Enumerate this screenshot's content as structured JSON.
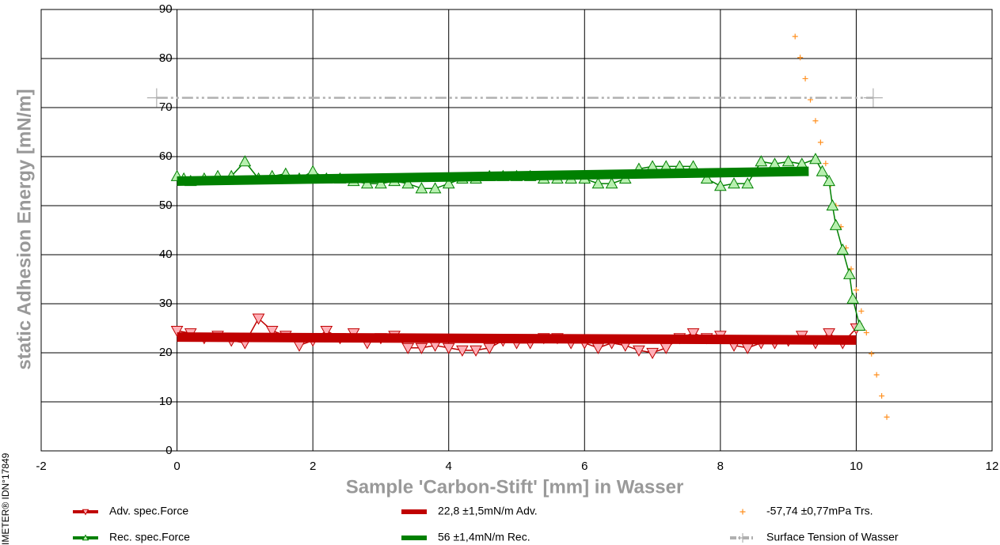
{
  "chart_data": {
    "type": "scatter",
    "xlabel": "Sample 'Carbon-Stift' [mm] in Wasser",
    "ylabel": "static Adhesion Energy [mN/m]",
    "watermark": "IMETER® IDN°17849",
    "xlim": [
      -2,
      12
    ],
    "xticks": [
      -2,
      0,
      2,
      4,
      6,
      8,
      10,
      12
    ],
    "ylim": [
      0,
      90
    ],
    "yticks": [
      0,
      10,
      20,
      30,
      40,
      50,
      60,
      70,
      80,
      90
    ],
    "grid": true,
    "series": [
      {
        "name": "Adv. spec.Force",
        "color": "#c00000",
        "marker": "triangle-down",
        "x": [
          0,
          0.2,
          0.4,
          0.6,
          0.8,
          1.0,
          1.2,
          1.4,
          1.6,
          1.8,
          2.0,
          2.2,
          2.4,
          2.6,
          2.8,
          3.0,
          3.2,
          3.4,
          3.6,
          3.8,
          4.0,
          4.2,
          4.4,
          4.6,
          4.8,
          5.0,
          5.2,
          5.4,
          5.6,
          5.8,
          6.0,
          6.2,
          6.4,
          6.6,
          6.8,
          7.0,
          7.2,
          7.4,
          7.6,
          7.8,
          8.0,
          8.2,
          8.4,
          8.6,
          8.8,
          9.0,
          9.2,
          9.4,
          9.6,
          9.8,
          10.0
        ],
        "values": [
          24.5,
          24,
          23,
          23.5,
          22.5,
          22,
          27,
          24.5,
          23.5,
          21.5,
          22.5,
          24.5,
          23,
          24,
          22,
          23,
          23.5,
          21,
          21,
          21.5,
          21,
          20.5,
          20.5,
          21,
          22.5,
          22,
          22,
          23,
          23,
          22,
          22,
          21,
          22,
          21.5,
          20.5,
          20,
          21,
          23,
          24,
          23,
          23.5,
          21.5,
          21,
          22,
          22,
          22.5,
          23.5,
          22,
          24,
          22,
          25
        ]
      },
      {
        "name": "22,8 ±1,5mN/m Adv.",
        "color": "#c00000",
        "marker": "none",
        "x": [
          0,
          10
        ],
        "values": [
          23.2,
          22.6
        ]
      },
      {
        "name": "-57,74 ±0,77mPa Trs.",
        "color": "#ff9020",
        "marker": "plus",
        "x": [
          9.1,
          9.175,
          9.25,
          9.325,
          9.4,
          9.475,
          9.55,
          9.625,
          9.7,
          9.775,
          9.85,
          9.925,
          10.0,
          10.075,
          10.15,
          10.225,
          10.3,
          10.375,
          10.45
        ],
        "values": [
          84.5,
          80.2,
          75.9,
          71.6,
          67.3,
          62.9,
          58.6,
          54.3,
          50.0,
          45.7,
          41.4,
          37.1,
          32.8,
          28.5,
          24.1,
          19.8,
          15.5,
          11.2,
          6.9
        ]
      },
      {
        "name": "Rec. spec.Force",
        "color": "#008000",
        "marker": "triangle-up",
        "x": [
          0,
          0.1,
          0.2,
          0.4,
          0.6,
          0.8,
          1.0,
          1.2,
          1.4,
          1.6,
          1.8,
          2.0,
          2.2,
          2.4,
          2.6,
          2.8,
          3.0,
          3.2,
          3.4,
          3.6,
          3.8,
          4.0,
          4.2,
          4.4,
          4.6,
          4.8,
          5.0,
          5.2,
          5.4,
          5.6,
          5.8,
          6.0,
          6.2,
          6.4,
          6.6,
          6.8,
          7.0,
          7.2,
          7.4,
          7.6,
          7.8,
          8.0,
          8.2,
          8.4,
          8.6,
          8.8,
          9.0,
          9.2,
          9.4,
          9.5,
          9.6,
          9.65,
          9.7,
          9.8,
          9.9,
          9.95,
          10.05
        ],
        "values": [
          56,
          55.5,
          55,
          55.5,
          56,
          56,
          59,
          55.5,
          56,
          56.5,
          55.5,
          57,
          55.5,
          55.5,
          55,
          54.5,
          54.5,
          55,
          54.5,
          53.5,
          53.5,
          54.5,
          55.5,
          55.5,
          56,
          56,
          56,
          56,
          55.5,
          55.5,
          55.5,
          55.5,
          54.5,
          54.5,
          55.5,
          57.5,
          58,
          58,
          58,
          58,
          55.5,
          54,
          54.5,
          54.5,
          59,
          58.5,
          59,
          58.5,
          59.5,
          57,
          55,
          50,
          46,
          41,
          36,
          31,
          25.5
        ]
      },
      {
        "name": "56 ±1,4mN/m Rec.",
        "color": "#008000",
        "marker": "none",
        "x": [
          0,
          9.3
        ],
        "values": [
          55,
          57
        ]
      },
      {
        "name": "Surface Tension of Wasser",
        "color": "#b0b0b0",
        "marker": "cross",
        "dashed": true,
        "x": [
          -0.3,
          10.25
        ],
        "values": [
          72,
          72
        ]
      }
    ]
  }
}
